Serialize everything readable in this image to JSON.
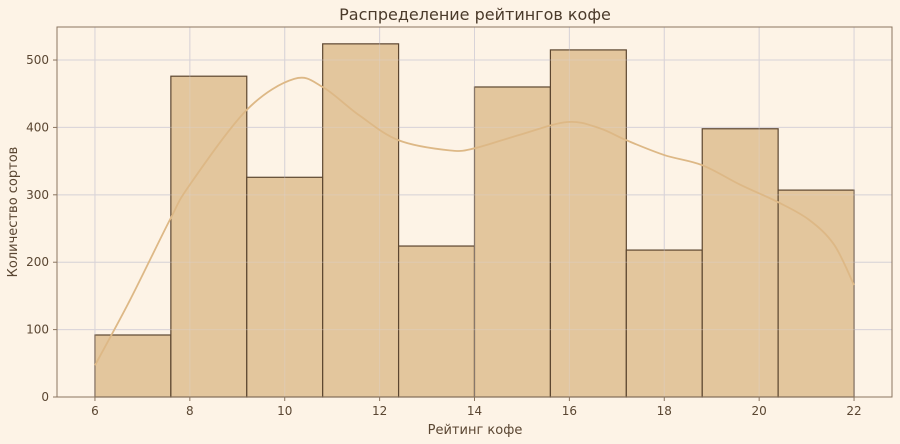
{
  "chart_data": {
    "type": "bar",
    "title": "Распределение рейтингов кофе",
    "xlabel": "Рейтинг кофе",
    "ylabel": "Количество сортов",
    "xlim": [
      5.2,
      22.8
    ],
    "ylim": [
      0,
      549
    ],
    "xticks": [
      6,
      8,
      10,
      12,
      14,
      16,
      18,
      20,
      22
    ],
    "yticks": [
      0,
      100,
      200,
      300,
      400,
      500
    ],
    "grid": true,
    "bin_edges": [
      6,
      7.6,
      9.2,
      10.8,
      12.4,
      14,
      15.6,
      17.2,
      18.8,
      20.4,
      22
    ],
    "values": [
      92,
      476,
      326,
      524,
      224,
      460,
      515,
      218,
      398,
      307
    ],
    "kde": {
      "x": [
        6,
        6.74,
        7.58,
        8,
        9.2,
        10.2,
        10.8,
        11.57,
        12.4,
        13.47,
        14,
        14.95,
        15.96,
        16.63,
        17.2,
        18,
        18.8,
        19.6,
        20.4,
        21.05,
        21.58,
        22
      ],
      "y": [
        47,
        144,
        263,
        315,
        426,
        472,
        460,
        418,
        381,
        366,
        369,
        389,
        408,
        399,
        381,
        359,
        344,
        315,
        289,
        263,
        226,
        166
      ]
    },
    "colors": {
      "background": "#fdf3e6",
      "bar_fill": "#e3c69d",
      "bar_edge": "#5c4630",
      "kde": "#ddb886",
      "grid": "#d8d3d8",
      "frame": "#8a7560"
    }
  }
}
